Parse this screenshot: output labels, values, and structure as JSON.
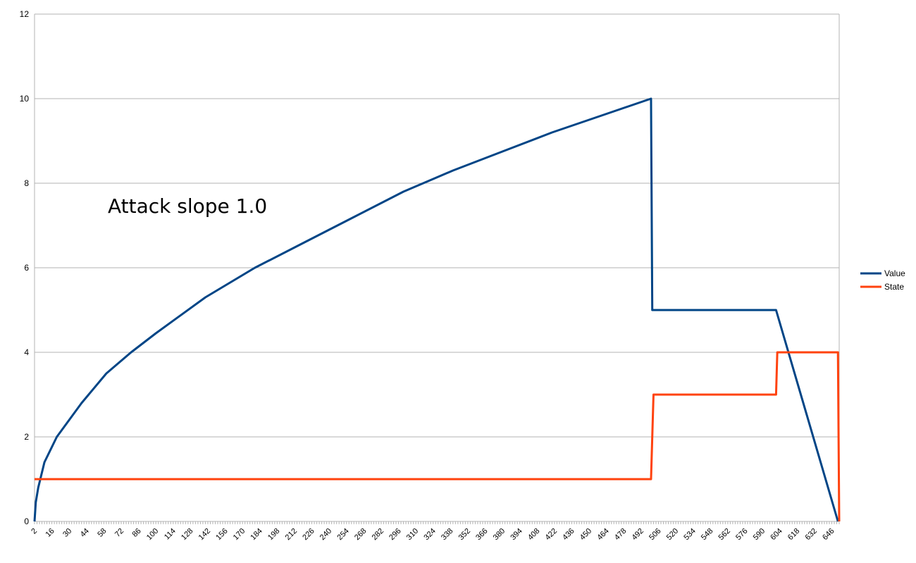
{
  "chart_data": {
    "type": "line",
    "title": "",
    "xlabel": "",
    "ylabel": "",
    "annotation": "Attack slope 1.0",
    "xlim": [
      2,
      652
    ],
    "ylim": [
      0,
      12
    ],
    "y_ticks": [
      "0",
      "2",
      "4",
      "6",
      "8",
      "10",
      "12"
    ],
    "x_ticks": [
      "2",
      "16",
      "30",
      "44",
      "58",
      "72",
      "86",
      "100",
      "114",
      "128",
      "142",
      "156",
      "170",
      "184",
      "198",
      "212",
      "226",
      "240",
      "254",
      "268",
      "282",
      "296",
      "310",
      "324",
      "338",
      "352",
      "366",
      "380",
      "394",
      "408",
      "422",
      "436",
      "450",
      "464",
      "478",
      "492",
      "506",
      "520",
      "534",
      "548",
      "562",
      "576",
      "590",
      "604",
      "618",
      "632",
      "646"
    ],
    "grid": true,
    "legend_position": "right",
    "series": [
      {
        "name": "Value",
        "color": "#004586",
        "points": [
          [
            2,
            0
          ],
          [
            3,
            0.45
          ],
          [
            5,
            0.8
          ],
          [
            10,
            1.4
          ],
          [
            20,
            2.0
          ],
          [
            40,
            2.8
          ],
          [
            60,
            3.5
          ],
          [
            80,
            4.0
          ],
          [
            100,
            4.45
          ],
          [
            140,
            5.3
          ],
          [
            180,
            6.0
          ],
          [
            220,
            6.6
          ],
          [
            260,
            7.2
          ],
          [
            300,
            7.8
          ],
          [
            340,
            8.3
          ],
          [
            380,
            8.75
          ],
          [
            420,
            9.2
          ],
          [
            460,
            9.6
          ],
          [
            500,
            10.0
          ],
          [
            501,
            5.0
          ],
          [
            601,
            5.0
          ],
          [
            651,
            0
          ]
        ]
      },
      {
        "name": "State",
        "color": "#ff420e",
        "points": [
          [
            2,
            1
          ],
          [
            500,
            1
          ],
          [
            502,
            3
          ],
          [
            601,
            3
          ],
          [
            602,
            4
          ],
          [
            651,
            4
          ],
          [
            652,
            0
          ]
        ]
      }
    ]
  }
}
